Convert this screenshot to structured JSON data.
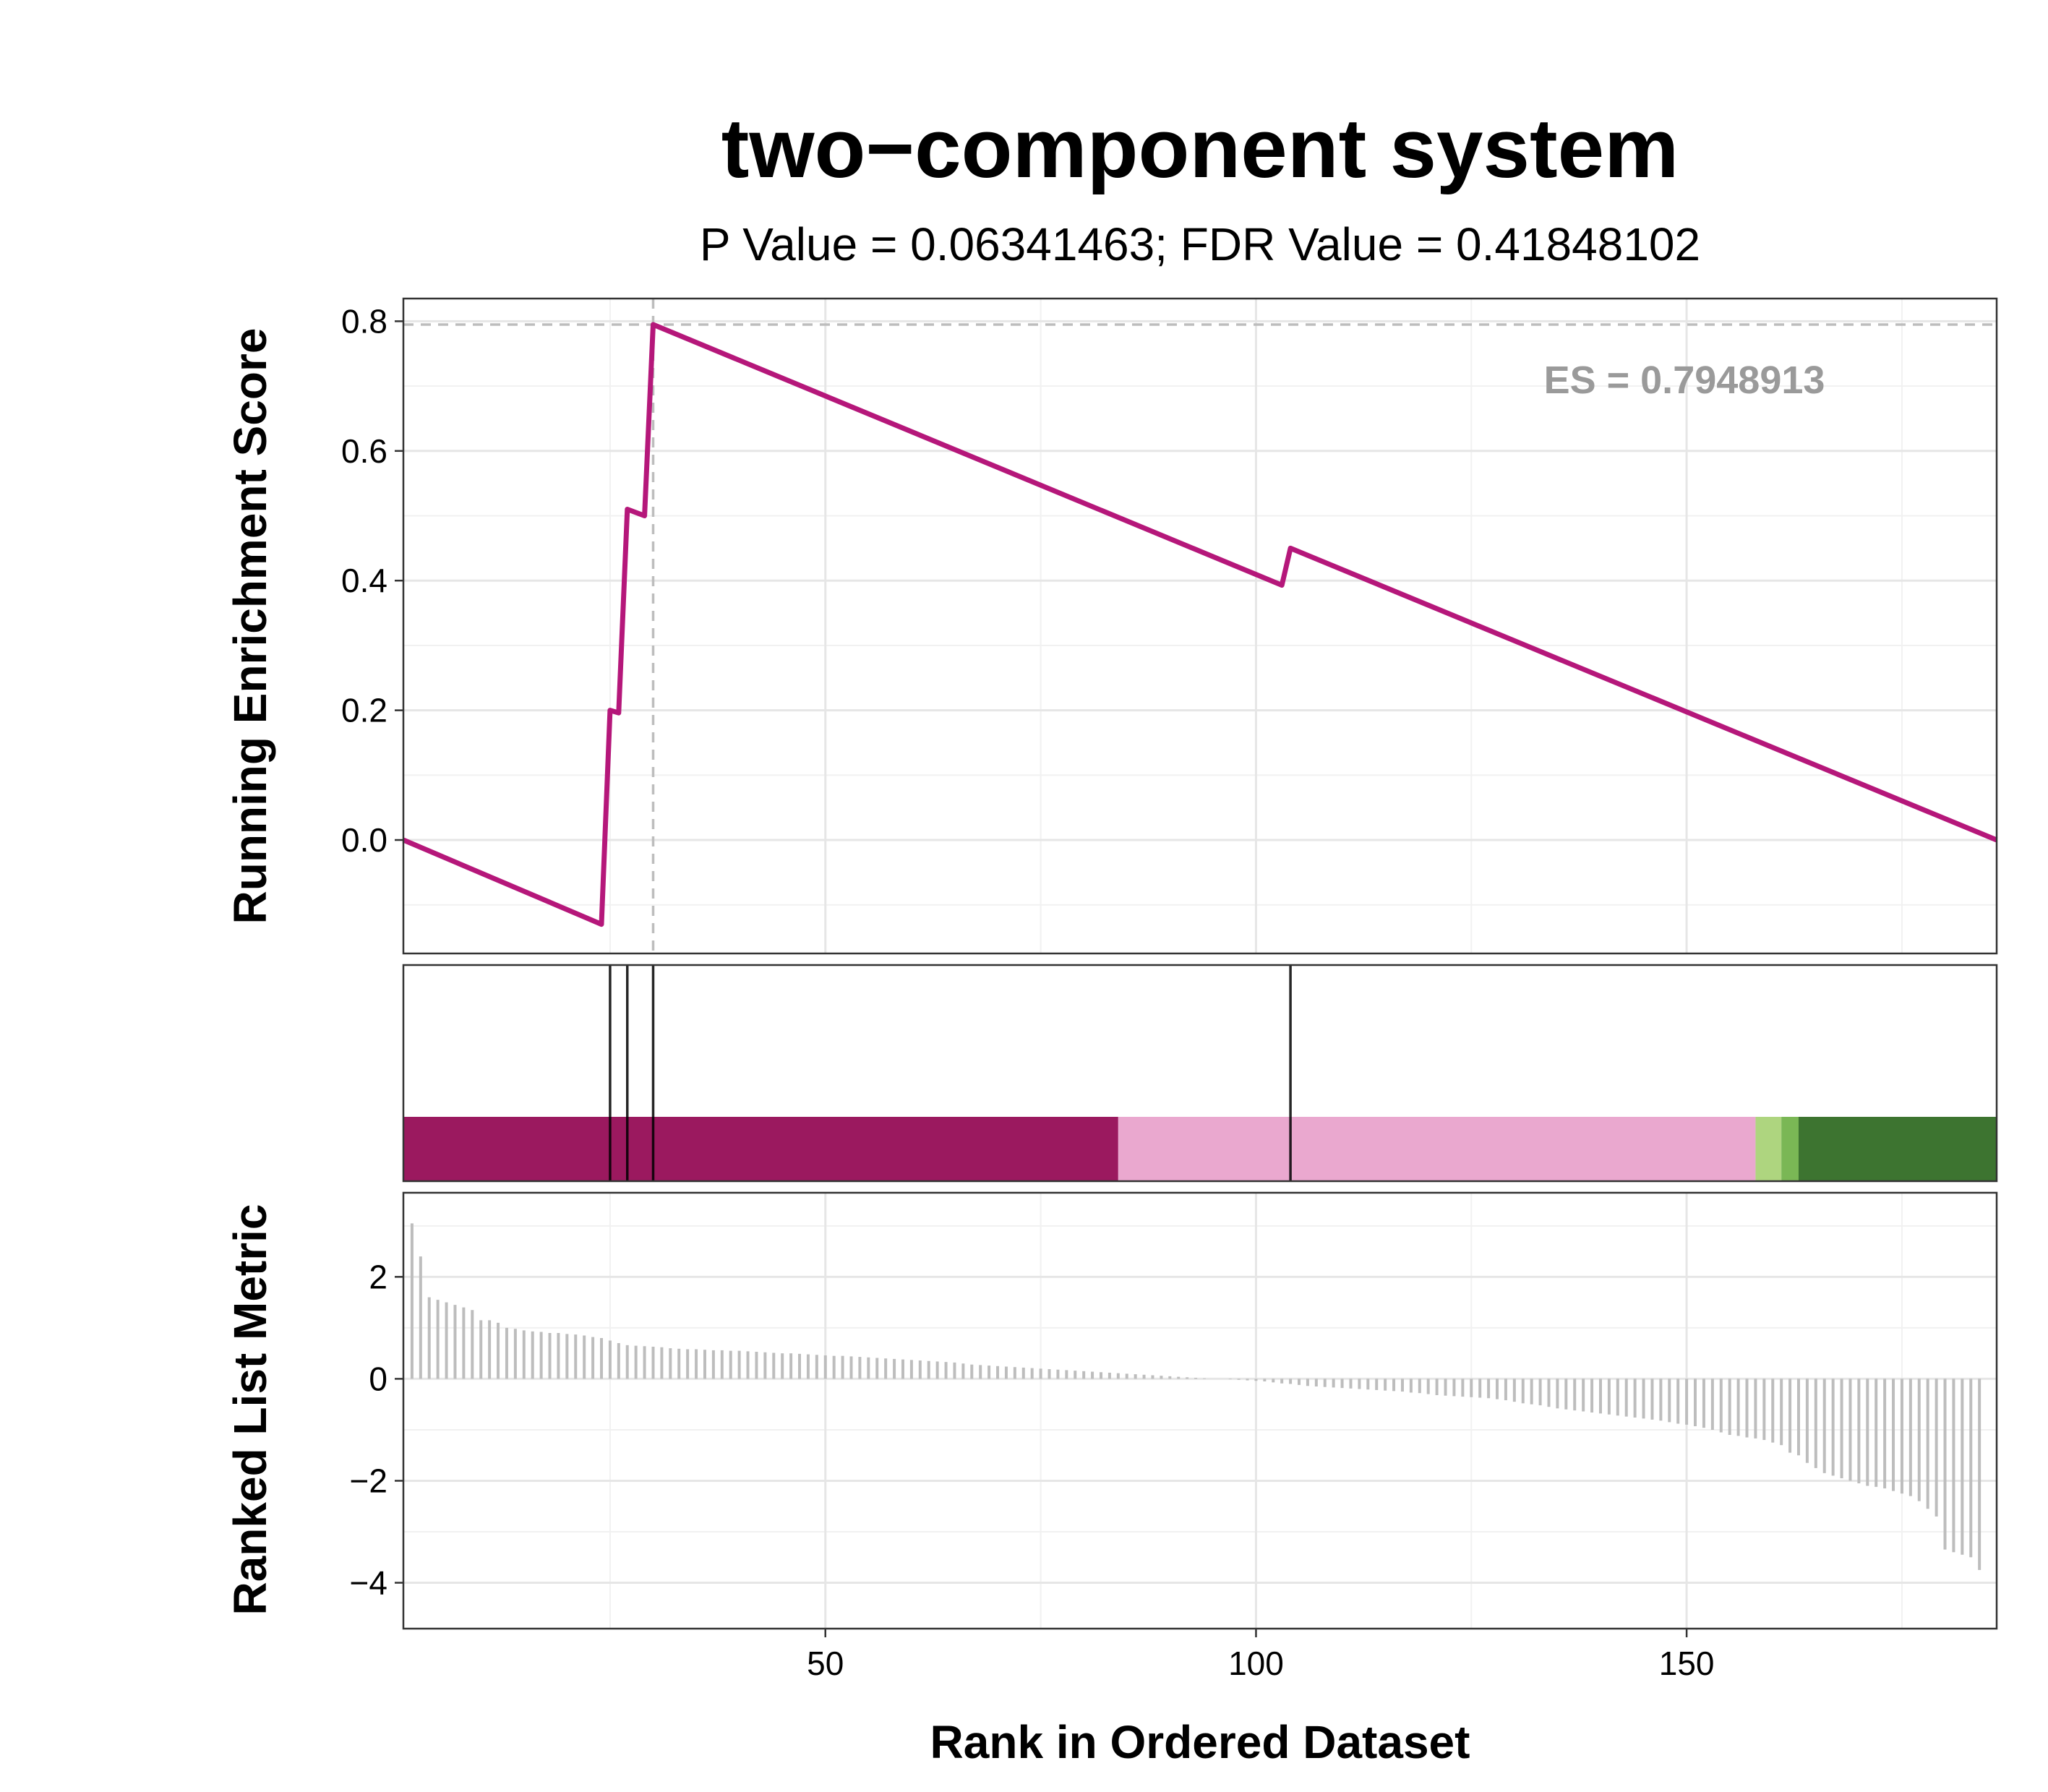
{
  "chart_data": {
    "type": "line",
    "title": "two−component system",
    "subtitle": "P Value = 0.06341463; FDR Value = 0.41848102",
    "xlabel": "Rank in Ordered Dataset",
    "xlim": [
      1,
      186
    ],
    "x_ticks": [
      50,
      100,
      150
    ],
    "x_tick_labels": [
      "50",
      "100",
      "150"
    ],
    "es_label": "ES = 0.7948913",
    "running_es": {
      "ylabel": "Running Enrichment Score",
      "ylim": [
        -0.175,
        0.835
      ],
      "y_ticks": [
        0.0,
        0.2,
        0.4,
        0.6,
        0.8
      ],
      "y_tick_labels": [
        "0.0",
        "0.2",
        "0.4",
        "0.6",
        "0.8"
      ],
      "color": "#b5177a",
      "es_value": 0.7948913,
      "es_rank": 30,
      "points": [
        [
          1,
          0.0
        ],
        [
          24,
          -0.13
        ],
        [
          25,
          0.2
        ],
        [
          26,
          0.196
        ],
        [
          27,
          0.51
        ],
        [
          28,
          0.505
        ],
        [
          29,
          0.5
        ],
        [
          30,
          0.7948913
        ],
        [
          103,
          0.393
        ],
        [
          104,
          0.45
        ],
        [
          186,
          0.0
        ]
      ]
    },
    "hits": [
      25,
      27,
      30,
      104
    ],
    "color_bands": [
      {
        "from": 1,
        "to": 84,
        "color": "#9b195f"
      },
      {
        "from": 84,
        "to": 158,
        "color": "#eaa8cf"
      },
      {
        "from": 158,
        "to": 161,
        "color": "#aed57f"
      },
      {
        "from": 161,
        "to": 163,
        "color": "#7ab755"
      },
      {
        "from": 163,
        "to": 186,
        "color": "#3d7430"
      }
    ],
    "ranked_metric": {
      "ylabel": "Ranked List Metric",
      "ylim": [
        -4.9,
        3.65
      ],
      "y_ticks": [
        -4,
        -2,
        0,
        2
      ],
      "y_tick_labels": [
        "−4",
        "−2",
        "0",
        "2"
      ],
      "color": "#bdbdbd",
      "values": [
        3.05,
        2.4,
        1.6,
        1.55,
        1.5,
        1.45,
        1.4,
        1.35,
        1.15,
        1.15,
        1.1,
        1.0,
        0.98,
        0.95,
        0.93,
        0.92,
        0.9,
        0.9,
        0.88,
        0.87,
        0.85,
        0.82,
        0.8,
        0.75,
        0.7,
        0.66,
        0.65,
        0.64,
        0.63,
        0.62,
        0.6,
        0.59,
        0.58,
        0.58,
        0.57,
        0.56,
        0.56,
        0.55,
        0.55,
        0.54,
        0.53,
        0.52,
        0.51,
        0.5,
        0.5,
        0.49,
        0.48,
        0.47,
        0.46,
        0.45,
        0.45,
        0.44,
        0.43,
        0.42,
        0.41,
        0.4,
        0.39,
        0.38,
        0.37,
        0.36,
        0.35,
        0.34,
        0.33,
        0.32,
        0.3,
        0.28,
        0.27,
        0.26,
        0.25,
        0.24,
        0.23,
        0.22,
        0.21,
        0.2,
        0.19,
        0.18,
        0.17,
        0.16,
        0.15,
        0.14,
        0.13,
        0.12,
        0.11,
        0.1,
        0.09,
        0.08,
        0.07,
        0.06,
        0.05,
        0.04,
        0.03,
        0.02,
        0.01,
        0.0,
        0.0,
        -0.01,
        -0.02,
        -0.03,
        -0.04,
        -0.05,
        -0.07,
        -0.09,
        -0.1,
        -0.12,
        -0.14,
        -0.15,
        -0.16,
        -0.17,
        -0.18,
        -0.19,
        -0.2,
        -0.21,
        -0.22,
        -0.23,
        -0.24,
        -0.25,
        -0.27,
        -0.28,
        -0.3,
        -0.32,
        -0.33,
        -0.34,
        -0.35,
        -0.36,
        -0.37,
        -0.38,
        -0.4,
        -0.42,
        -0.45,
        -0.48,
        -0.5,
        -0.52,
        -0.55,
        -0.58,
        -0.6,
        -0.62,
        -0.64,
        -0.66,
        -0.68,
        -0.7,
        -0.72,
        -0.74,
        -0.76,
        -0.78,
        -0.8,
        -0.82,
        -0.85,
        -0.88,
        -0.9,
        -0.93,
        -0.96,
        -1.0,
        -1.05,
        -1.1,
        -1.12,
        -1.15,
        -1.17,
        -1.2,
        -1.25,
        -1.3,
        -1.45,
        -1.5,
        -1.65,
        -1.75,
        -1.85,
        -1.9,
        -1.95,
        -2.0,
        -2.05,
        -2.1,
        -2.12,
        -2.15,
        -2.2,
        -2.25,
        -2.3,
        -2.4,
        -2.55,
        -2.7,
        -3.35,
        -3.4,
        -3.45,
        -3.5,
        -3.75
      ]
    }
  }
}
